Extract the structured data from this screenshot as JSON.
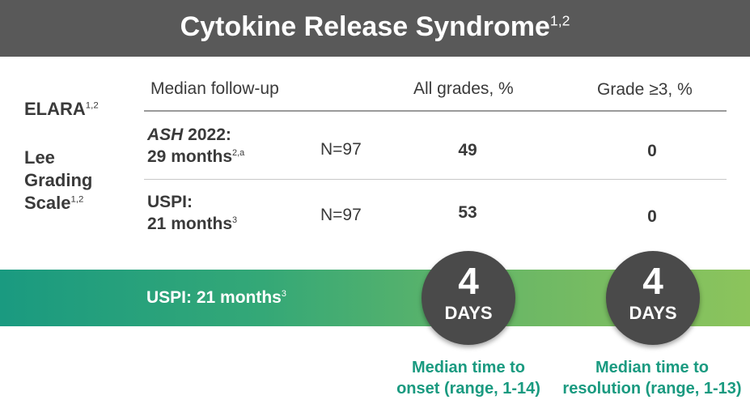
{
  "title": {
    "text": "Cytokine Release Syndrome",
    "sup": "1,2"
  },
  "sidebar": {
    "study": "ELARA",
    "study_sup": "1,2",
    "scale_line1": "Lee",
    "scale_line2": "Grading",
    "scale_line3": "Scale",
    "scale_sup": "1,2"
  },
  "headers": {
    "followup": "Median follow-up",
    "all_grades": "All grades, %",
    "grade3": "Grade ≥3, %"
  },
  "rows": [
    {
      "source": "ASH",
      "source_rest": " 2022:",
      "duration": "29 months",
      "duration_sup": "2,a",
      "n": "N=97",
      "all_grades": "49",
      "grade3": "0"
    },
    {
      "source": "USPI:",
      "duration": "21 months",
      "duration_sup": "3",
      "n": "N=97",
      "all_grades": "53",
      "grade3": "0"
    }
  ],
  "band": {
    "label": "USPI: 21 months",
    "label_sup": "3",
    "colors": [
      "#1a9a80",
      "#8cc45c"
    ]
  },
  "onset": {
    "value": "4",
    "unit": "DAYS",
    "caption1": "Median time to",
    "caption2": "onset (range, 1-14)"
  },
  "resolution": {
    "value": "4",
    "unit": "DAYS",
    "caption1": "Median time to",
    "caption2": "resolution (range, 1-13)"
  }
}
